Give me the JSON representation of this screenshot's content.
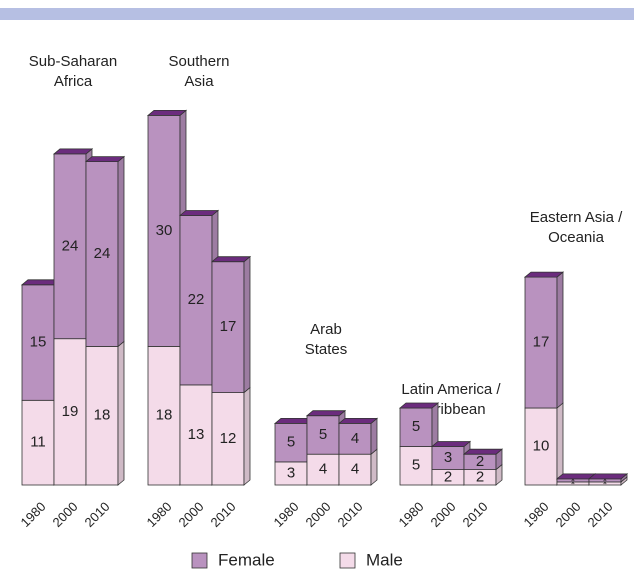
{
  "chart_data": {
    "type": "bar",
    "stacked": true,
    "groups": [
      [
        "Sub-Saharan",
        "Africa"
      ],
      [
        "Southern",
        "Asia"
      ],
      [
        "Arab",
        "States"
      ],
      [
        "Latin America /",
        "Caribbean"
      ],
      [
        "Eastern Asia /",
        "Oceania"
      ]
    ],
    "categories": [
      "1980",
      "2000",
      "2010"
    ],
    "series": [
      {
        "name": "Male",
        "color": "#f4dbe9",
        "values": [
          [
            11,
            19,
            18
          ],
          [
            18,
            13,
            12
          ],
          [
            3,
            4,
            4
          ],
          [
            5,
            2,
            2
          ],
          [
            10,
            0.4,
            0.4
          ]
        ],
        "value_labels": [
          [
            null,
            null,
            null
          ],
          [
            null,
            null,
            null
          ],
          [
            null,
            null,
            null
          ],
          [
            null,
            null,
            null
          ],
          [
            null,
            "*",
            "*"
          ]
        ]
      },
      {
        "name": "Female",
        "color": "#b992bf",
        "values": [
          [
            15,
            24,
            24
          ],
          [
            30,
            22,
            17
          ],
          [
            5,
            5,
            4
          ],
          [
            5,
            3,
            2
          ],
          [
            17,
            0.4,
            0.4
          ]
        ],
        "value_labels": [
          [
            null,
            null,
            null
          ],
          [
            null,
            null,
            null
          ],
          [
            null,
            null,
            null
          ],
          [
            null,
            null,
            null
          ],
          [
            null,
            "*",
            "*"
          ]
        ]
      }
    ],
    "top_color": "#6b2c7d"
  }
}
